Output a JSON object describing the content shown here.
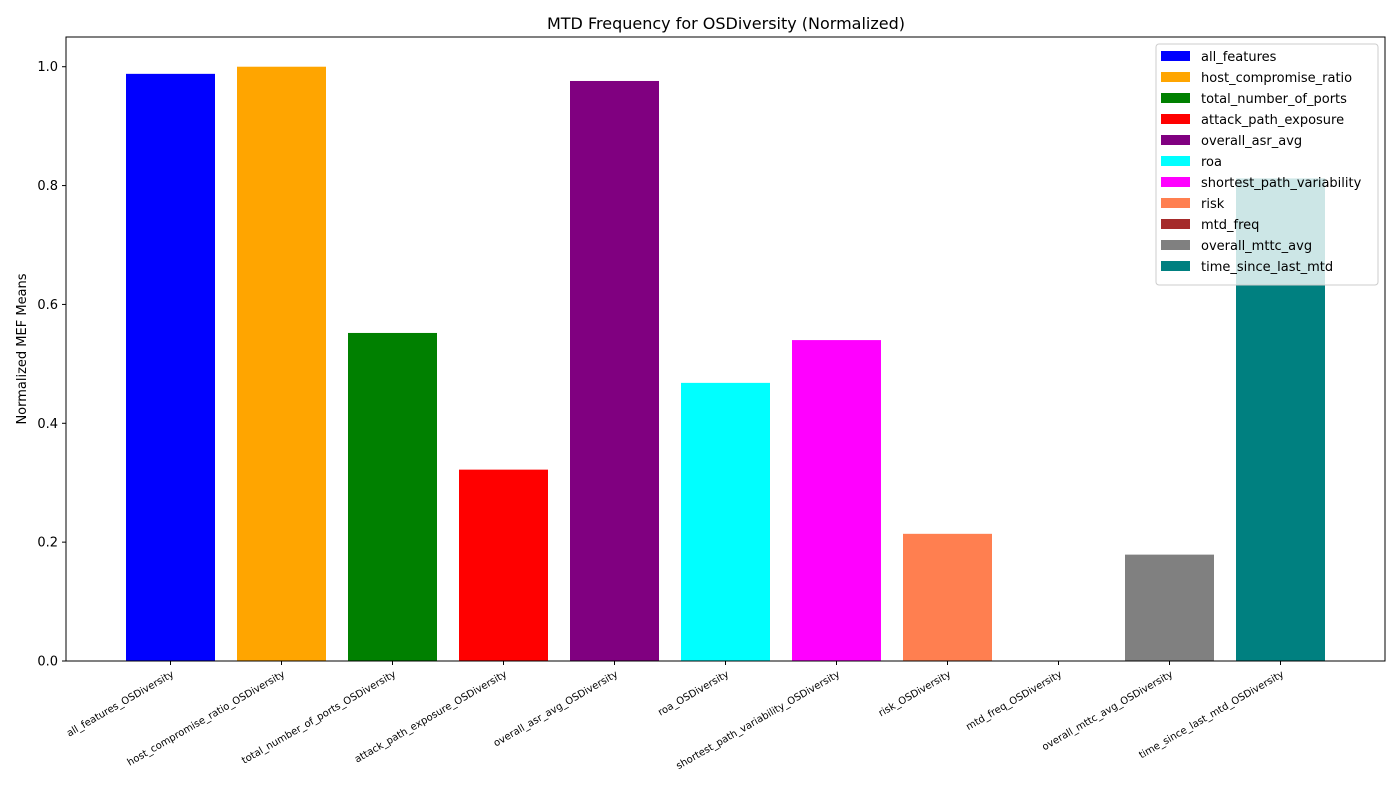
{
  "chart_data": {
    "type": "bar",
    "title": "MTD Frequency for OSDiversity (Normalized)",
    "xlabel": "",
    "ylabel": "Normalized MEF Means",
    "ylim": [
      0,
      1.05
    ],
    "yticks": [
      0.0,
      0.2,
      0.4,
      0.6,
      0.8,
      1.0
    ],
    "ytick_labels": [
      "0.0",
      "0.2",
      "0.4",
      "0.6",
      "0.8",
      "1.0"
    ],
    "grid": false,
    "legend_position": "top-right",
    "categories": [
      "all_features_OSDiversity",
      "host_compromise_ratio_OSDiversity",
      "total_number_of_ports_OSDiversity",
      "attack_path_exposure_OSDiversity",
      "overall_asr_avg_OSDiversity",
      "roa_OSDiversity",
      "shortest_path_variability_OSDiversity",
      "risk_OSDiversity",
      "mtd_freq_OSDiversity",
      "overall_mttc_avg_OSDiversity",
      "time_since_last_mtd_OSDiversity"
    ],
    "values": [
      0.988,
      1.0,
      0.552,
      0.322,
      0.976,
      0.468,
      0.54,
      0.214,
      0.0,
      0.179,
      0.812
    ],
    "colors": [
      "#0000ff",
      "#ffa500",
      "#008000",
      "#ff0000",
      "#800080",
      "#00ffff",
      "#ff00ff",
      "#ff7f50",
      "#a52a2a",
      "#808080",
      "#008080"
    ],
    "legend": [
      {
        "label": "all_features",
        "color": "#0000ff"
      },
      {
        "label": "host_compromise_ratio",
        "color": "#ffa500"
      },
      {
        "label": "total_number_of_ports",
        "color": "#008000"
      },
      {
        "label": "attack_path_exposure",
        "color": "#ff0000"
      },
      {
        "label": "overall_asr_avg",
        "color": "#800080"
      },
      {
        "label": "roa",
        "color": "#00ffff"
      },
      {
        "label": "shortest_path_variability",
        "color": "#ff00ff"
      },
      {
        "label": "risk",
        "color": "#ff7f50"
      },
      {
        "label": "mtd_freq",
        "color": "#a52a2a"
      },
      {
        "label": "overall_mttc_avg",
        "color": "#808080"
      },
      {
        "label": "time_since_last_mtd",
        "color": "#008080"
      }
    ]
  }
}
